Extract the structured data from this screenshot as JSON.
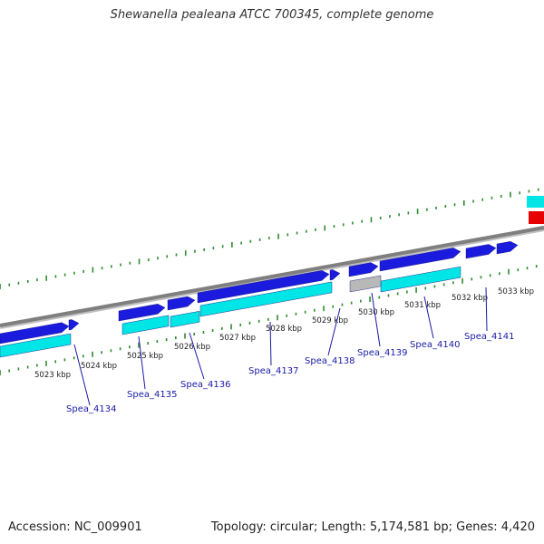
{
  "title": "Shewanella pealeana ATCC 700345, complete genome",
  "footer": {
    "accession": "Accession: NC_009901",
    "topology": "Topology: circular; Length: 5,174,581 bp; Genes: 4,420"
  },
  "colors": {
    "backbone": "#7f7f7f",
    "cds_forward": "#1b1bdd",
    "cds_reverse": "#00e5e5",
    "other": "#b8b8b8",
    "highlight": "#e60000",
    "tick": "#2e8b2e",
    "gene_label": "#1a1aa6"
  },
  "tick_labels": [
    "5023 kbp",
    "5024 kbp",
    "5025 kbp",
    "5026 kbp",
    "5027 kbp",
    "5028 kbp",
    "5029 kbp",
    "5030 kbp",
    "5031 kbp",
    "5032 kbp",
    "5033 kbp"
  ],
  "gene_labels": [
    "Spea_4134",
    "Spea_4135",
    "Spea_4136",
    "Spea_4137",
    "Spea_4138",
    "Spea_4139",
    "Spea_4140",
    "Spea_4141"
  ]
}
